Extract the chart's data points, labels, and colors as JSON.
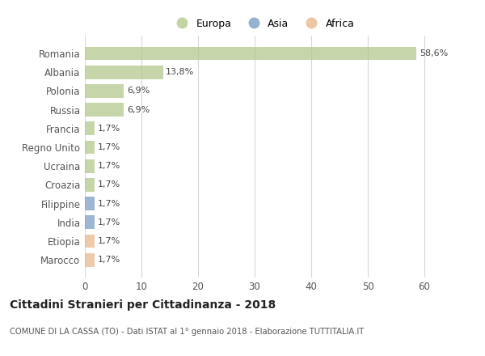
{
  "countries": [
    "Romania",
    "Albania",
    "Polonia",
    "Russia",
    "Francia",
    "Regno Unito",
    "Ucraina",
    "Croazia",
    "Filippine",
    "India",
    "Etiopia",
    "Marocco"
  ],
  "values": [
    58.6,
    13.8,
    6.9,
    6.9,
    1.7,
    1.7,
    1.7,
    1.7,
    1.7,
    1.7,
    1.7,
    1.7
  ],
  "labels": [
    "58,6%",
    "13,8%",
    "6,9%",
    "6,9%",
    "1,7%",
    "1,7%",
    "1,7%",
    "1,7%",
    "1,7%",
    "1,7%",
    "1,7%",
    "1,7%"
  ],
  "continents": [
    "Europa",
    "Europa",
    "Europa",
    "Europa",
    "Europa",
    "Europa",
    "Europa",
    "Europa",
    "Asia",
    "Asia",
    "Africa",
    "Africa"
  ],
  "colors": {
    "Europa": "#b5c98e",
    "Asia": "#7a9fc4",
    "Africa": "#e8b98c"
  },
  "xlim": [
    0,
    63
  ],
  "xticks": [
    0,
    10,
    20,
    30,
    40,
    50,
    60
  ],
  "title": "Cittadini Stranieri per Cittadinanza - 2018",
  "subtitle": "COMUNE DI LA CASSA (TO) - Dati ISTAT al 1° gennaio 2018 - Elaborazione TUTTITALIA.IT",
  "bg_color": "#ffffff",
  "grid_color": "#d8d8d8",
  "bar_height": 0.72
}
